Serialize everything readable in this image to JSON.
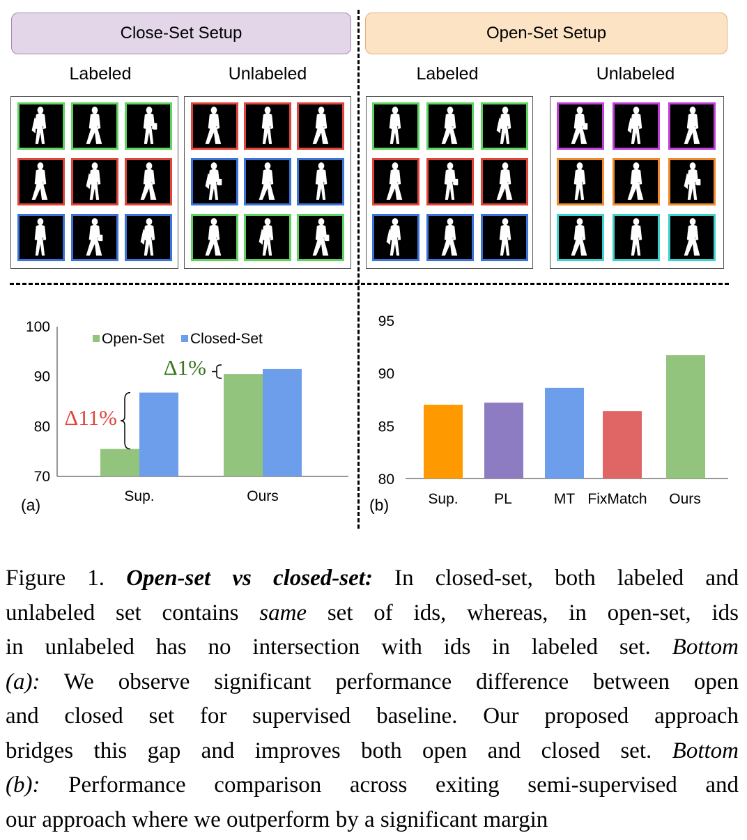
{
  "top": {
    "closed_setup": "Close-Set Setup",
    "open_setup": "Open-Set Setup",
    "labeled": "Labeled",
    "unlabeled": "Unlabeled",
    "panels": [
      {
        "name": "closed-labeled",
        "rows": [
          "#5fd35f",
          "#e0443a",
          "#3b74d9"
        ]
      },
      {
        "name": "closed-unlabeled",
        "rows": [
          "#e0443a",
          "#3b74d9",
          "#5fd35f"
        ]
      },
      {
        "name": "open-labeled",
        "rows": [
          "#5fd35f",
          "#e0443a",
          "#3b74d9"
        ]
      },
      {
        "name": "open-unlabeled",
        "rows": [
          "#c03fd6",
          "#f08a2a",
          "#3fd0d0"
        ]
      }
    ]
  },
  "chart_data": [
    {
      "type": "bar",
      "panel_label": "(a)",
      "categories": [
        "Sup.",
        "Ours"
      ],
      "series": [
        {
          "name": "Open-Set",
          "color": "#93c47d",
          "values": [
            75.5,
            90.5
          ]
        },
        {
          "name": "Closed-Set",
          "color": "#6d9eeb",
          "values": [
            86.8,
            91.5
          ]
        }
      ],
      "ylim": [
        70,
        100
      ],
      "yticks": [
        70,
        80,
        90,
        100
      ],
      "legend": "top",
      "annotations": [
        {
          "text": "Δ11%",
          "color": "#e0443a",
          "target": "Sup."
        },
        {
          "text": "Δ1%",
          "color": "#38761d",
          "target": "Ours"
        }
      ]
    },
    {
      "type": "bar",
      "panel_label": "(b)",
      "categories": [
        "Sup.",
        "PL",
        "MT",
        "FixMatch",
        "Ours"
      ],
      "values": [
        87.0,
        87.2,
        88.6,
        86.4,
        91.7
      ],
      "colors": [
        "#ff9900",
        "#8e7cc3",
        "#6d9eeb",
        "#e06666",
        "#93c47d"
      ],
      "ylim": [
        80,
        95
      ],
      "yticks": [
        80,
        85,
        90,
        95
      ]
    }
  ],
  "caption": {
    "l1_a": "Figure 1. ",
    "l1_b": "Open-set vs closed-set:",
    "l1_c": " In closed-set, both labeled and",
    "l2_a": "unlabeled set contains ",
    "l2_b": "same",
    "l2_c": " set of ids, whereas, in open-set, ids",
    "l3_a": "in unlabeled has no intersection with ids in labeled set. ",
    "l3_b": "Bottom",
    "l4_a": "(a):",
    "l4_b": " We observe significant performance difference between open",
    "l5": "and closed set for supervised baseline.  Our proposed approach",
    "l6_a": "bridges this gap and improves both open and closed set. ",
    "l6_b": "Bottom",
    "l7_a": "(b):",
    "l7_b": " Performance comparison across exiting semi-supervised and",
    "l8": "our approach where we outperform by a significant margin"
  }
}
